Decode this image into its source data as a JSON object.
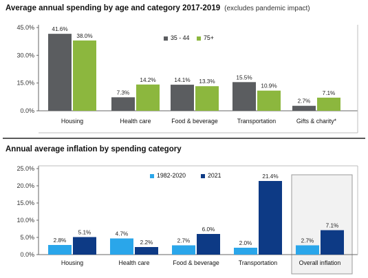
{
  "colors": {
    "dark_gray": "#5b5d60",
    "green": "#8cb73e",
    "light_blue": "#2aa6ea",
    "navy": "#0d3a85",
    "axis": "#666666",
    "divider": "#222222",
    "highlight_fill": "#f2f2f2",
    "highlight_border": "#9a9a9a"
  },
  "chart_data": [
    {
      "type": "bar",
      "title": "Average annual spending by age and category 2017-2019",
      "subtitle": "(excludes pandemic impact)",
      "categories": [
        "Housing",
        "Health care",
        "Food & beverage",
        "Transportation",
        "Gifts & charity*"
      ],
      "series": [
        {
          "name": "35 - 44",
          "color": "#5b5d60",
          "values": [
            41.6,
            7.3,
            14.1,
            15.5,
            2.7
          ],
          "labels": [
            "41.6%",
            "7.3%",
            "14.1%",
            "15.5%",
            "2.7%"
          ]
        },
        {
          "name": "75+",
          "color": "#8cb73e",
          "values": [
            38.0,
            14.2,
            13.3,
            10.9,
            7.1
          ],
          "labels": [
            "38.0%",
            "14.2%",
            "13.3%",
            "10.9%",
            "7.1%"
          ]
        }
      ],
      "ylim": [
        0,
        45
      ],
      "yticks": [
        0,
        15,
        30,
        45
      ],
      "ytick_labels": [
        "0.0%",
        "15.0%",
        "30.0%",
        "45.0%"
      ],
      "legend_position": "top-center",
      "grid": false
    },
    {
      "type": "bar",
      "title": "Annual average inflation by spending category",
      "categories": [
        "Housing",
        "Health care",
        "Food & beverage",
        "Transportation",
        "Overall inflation"
      ],
      "series": [
        {
          "name": "1982-2020",
          "color": "#2aa6ea",
          "values": [
            2.8,
            4.7,
            2.7,
            2.0,
            2.7
          ],
          "labels": [
            "2.8%",
            "4.7%",
            "2.7%",
            "2.0%",
            "2.7%"
          ]
        },
        {
          "name": "2021",
          "color": "#0d3a85",
          "values": [
            5.1,
            2.2,
            6.0,
            21.4,
            7.1
          ],
          "labels": [
            "5.1%",
            "2.2%",
            "6.0%",
            "21.4%",
            "7.1%"
          ]
        }
      ],
      "ylim": [
        0,
        25
      ],
      "yticks": [
        0,
        5,
        10,
        15,
        20,
        25
      ],
      "ytick_labels": [
        "0.0%",
        "5.0%",
        "10.0%",
        "15.0%",
        "20.0%",
        "25.0%"
      ],
      "legend_position": "top-left",
      "highlighted_category": "Overall inflation",
      "grid": false
    }
  ]
}
